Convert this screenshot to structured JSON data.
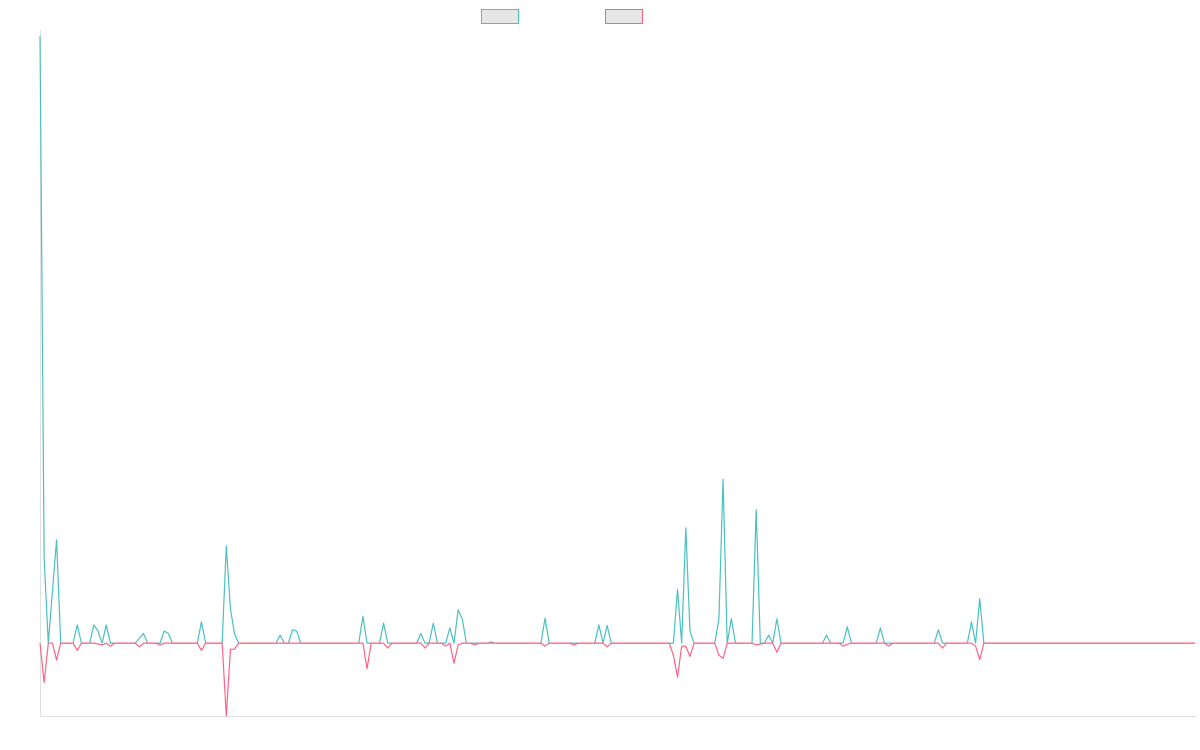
{
  "chart_data": {
    "type": "line",
    "title": "",
    "xlabel": "",
    "ylabel": "",
    "grid": false,
    "legend_position": "top-center",
    "ylim": [
      -0.12,
      1.0
    ],
    "x_count": 280,
    "series": [
      {
        "color": "#4bc0c0",
        "points": [
          [
            0,
            1.0
          ],
          [
            1,
            0.14
          ],
          [
            2,
            0.0
          ],
          [
            4,
            0.17
          ],
          [
            5,
            0.0
          ],
          [
            8,
            0.0
          ],
          [
            9,
            0.03
          ],
          [
            10,
            0.0
          ],
          [
            12,
            0.0
          ],
          [
            13,
            0.03
          ],
          [
            14,
            0.02
          ],
          [
            15,
            0.0
          ],
          [
            16,
            0.03
          ],
          [
            17,
            0.0
          ],
          [
            23,
            0.0
          ],
          [
            25,
            0.016
          ],
          [
            26,
            0.0
          ],
          [
            29,
            0.0
          ],
          [
            30,
            0.02
          ],
          [
            31,
            0.016
          ],
          [
            32,
            0.0
          ],
          [
            38,
            0.0
          ],
          [
            39,
            0.035
          ],
          [
            40,
            0.0
          ],
          [
            44,
            0.0
          ],
          [
            45,
            0.16
          ],
          [
            46,
            0.057
          ],
          [
            47,
            0.015
          ],
          [
            48,
            0.0
          ],
          [
            57,
            0.0
          ],
          [
            58,
            0.013
          ],
          [
            59,
            0.0
          ],
          [
            60,
            0.0
          ],
          [
            61,
            0.022
          ],
          [
            62,
            0.02
          ],
          [
            63,
            0.0
          ],
          [
            77,
            0.0
          ],
          [
            78,
            0.044
          ],
          [
            79,
            0.0
          ],
          [
            82,
            0.0
          ],
          [
            83,
            0.033
          ],
          [
            84,
            0.0
          ],
          [
            91,
            0.0
          ],
          [
            92,
            0.016
          ],
          [
            93,
            0.0
          ],
          [
            94,
            0.0
          ],
          [
            95,
            0.033
          ],
          [
            96,
            0.0
          ],
          [
            98,
            0.0
          ],
          [
            99,
            0.025
          ],
          [
            100,
            0.0
          ],
          [
            101,
            0.055
          ],
          [
            102,
            0.04
          ],
          [
            103,
            0.0
          ],
          [
            108,
            0.0
          ],
          [
            109,
            0.002
          ],
          [
            110,
            0.0
          ],
          [
            121,
            0.0
          ],
          [
            122,
            0.041
          ],
          [
            123,
            0.0
          ],
          [
            134,
            0.0
          ],
          [
            135,
            0.03
          ],
          [
            136,
            0.0
          ],
          [
            137,
            0.029
          ],
          [
            138,
            0.0
          ],
          [
            153,
            0.0
          ],
          [
            154,
            0.088
          ],
          [
            155,
            0.0
          ],
          [
            156,
            0.19
          ],
          [
            157,
            0.02
          ],
          [
            158,
            0.0
          ],
          [
            163,
            0.0
          ],
          [
            164,
            0.04
          ],
          [
            165,
            0.27
          ],
          [
            166,
            0.0
          ],
          [
            167,
            0.04
          ],
          [
            168,
            0.0
          ],
          [
            172,
            0.0
          ],
          [
            173,
            0.22
          ],
          [
            174,
            0.0
          ],
          [
            175,
            0.0
          ],
          [
            176,
            0.013
          ],
          [
            177,
            0.0
          ],
          [
            178,
            0.04
          ],
          [
            179,
            0.0
          ],
          [
            189,
            0.0
          ],
          [
            190,
            0.013
          ],
          [
            191,
            0.0
          ],
          [
            194,
            0.0
          ],
          [
            195,
            0.027
          ],
          [
            196,
            0.0
          ],
          [
            202,
            0.0
          ],
          [
            203,
            0.025
          ],
          [
            204,
            0.0
          ],
          [
            216,
            0.0
          ],
          [
            217,
            0.022
          ],
          [
            218,
            0.0
          ],
          [
            224,
            0.0
          ],
          [
            225,
            0.035
          ],
          [
            226,
            0.0
          ],
          [
            227,
            0.073
          ],
          [
            228,
            0.0
          ],
          [
            279,
            0.0
          ]
        ]
      },
      {
        "color": "#ff6384",
        "points": [
          [
            0,
            0.0
          ],
          [
            1,
            -0.065
          ],
          [
            2,
            0.0
          ],
          [
            3,
            0.0
          ],
          [
            4,
            -0.028
          ],
          [
            5,
            0.0
          ],
          [
            8,
            0.0
          ],
          [
            9,
            -0.012
          ],
          [
            10,
            0.0
          ],
          [
            13,
            0.0
          ],
          [
            15,
            -0.003
          ],
          [
            16,
            0.0
          ],
          [
            17,
            -0.005
          ],
          [
            18,
            0.0
          ],
          [
            23,
            0.0
          ],
          [
            24,
            -0.006
          ],
          [
            25,
            0.0
          ],
          [
            28,
            0.0
          ],
          [
            29,
            -0.003
          ],
          [
            30,
            0.0
          ],
          [
            38,
            0.0
          ],
          [
            39,
            -0.012
          ],
          [
            40,
            0.0
          ],
          [
            44,
            0.0
          ],
          [
            45,
            -0.12
          ],
          [
            46,
            -0.01
          ],
          [
            47,
            -0.01
          ],
          [
            48,
            0.0
          ],
          [
            78,
            0.0
          ],
          [
            79,
            -0.042
          ],
          [
            80,
            0.0
          ],
          [
            83,
            0.0
          ],
          [
            84,
            -0.008
          ],
          [
            85,
            0.0
          ],
          [
            92,
            0.0
          ],
          [
            93,
            -0.008
          ],
          [
            94,
            0.0
          ],
          [
            97,
            0.0
          ],
          [
            98,
            -0.005
          ],
          [
            99,
            0.0
          ],
          [
            100,
            -0.033
          ],
          [
            101,
            -0.003
          ],
          [
            102,
            0.0
          ],
          [
            104,
            0.0
          ],
          [
            105,
            -0.003
          ],
          [
            106,
            0.0
          ],
          [
            121,
            0.0
          ],
          [
            122,
            -0.005
          ],
          [
            123,
            0.0
          ],
          [
            128,
            0.0
          ],
          [
            129,
            -0.003
          ],
          [
            130,
            0.0
          ],
          [
            136,
            0.0
          ],
          [
            137,
            -0.006
          ],
          [
            138,
            0.0
          ],
          [
            152,
            0.0
          ],
          [
            153,
            -0.02
          ],
          [
            154,
            -0.056
          ],
          [
            155,
            -0.005
          ],
          [
            156,
            -0.005
          ],
          [
            157,
            -0.022
          ],
          [
            158,
            0.0
          ],
          [
            163,
            0.0
          ],
          [
            164,
            -0.02
          ],
          [
            165,
            -0.025
          ],
          [
            166,
            0.0
          ],
          [
            172,
            0.0
          ],
          [
            173,
            -0.003
          ],
          [
            175,
            0.0
          ],
          [
            177,
            0.0
          ],
          [
            178,
            -0.015
          ],
          [
            179,
            0.0
          ],
          [
            193,
            0.0
          ],
          [
            194,
            -0.005
          ],
          [
            195,
            -0.002
          ],
          [
            196,
            0.0
          ],
          [
            204,
            0.0
          ],
          [
            205,
            -0.005
          ],
          [
            206,
            0.0
          ],
          [
            217,
            0.0
          ],
          [
            218,
            -0.008
          ],
          [
            219,
            0.0
          ],
          [
            225,
            0.0
          ],
          [
            226,
            -0.005
          ],
          [
            227,
            -0.027
          ],
          [
            228,
            0.0
          ],
          [
            279,
            0.0
          ]
        ]
      }
    ]
  }
}
